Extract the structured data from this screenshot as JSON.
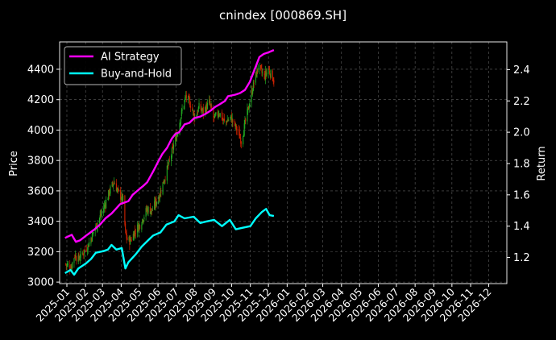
{
  "chart_data": {
    "type": "line",
    "title": "cnindex [000869.SH]",
    "ylabel_left": "Price",
    "ylabel_right": "Return",
    "ylim_left": [
      2990,
      4580
    ],
    "ylim_right": [
      1.033,
      2.577
    ],
    "yticks_left": [
      3000,
      3200,
      3400,
      3600,
      3800,
      4000,
      4200,
      4400
    ],
    "yticks_right": [
      1.2,
      1.4,
      1.6,
      1.8,
      2.0,
      2.2,
      2.4
    ],
    "ytick_labels_right": [
      "1.2",
      "1.4",
      "1.6",
      "1.8",
      "2.0",
      "2.2",
      "2.4"
    ],
    "xlim": [
      "2024-12-20",
      "2026-12-31"
    ],
    "x_ticks": [
      "2025-01",
      "2025-02",
      "2025-03",
      "2025-04",
      "2025-05",
      "2025-06",
      "2025-07",
      "2025-08",
      "2025-09",
      "2025-10",
      "2025-11",
      "2025-12",
      "2026-01",
      "2026-02",
      "2026-03",
      "2026-04",
      "2026-05",
      "2026-06",
      "2026-07",
      "2026-08",
      "2026-09",
      "2026-10",
      "2026-11",
      "2026-12"
    ],
    "x_tick_dates": [
      "2025-01-01",
      "2025-02-01",
      "2025-03-01",
      "2025-04-01",
      "2025-05-01",
      "2025-06-01",
      "2025-07-01",
      "2025-08-01",
      "2025-09-01",
      "2025-10-01",
      "2025-11-01",
      "2025-12-01",
      "2026-01-01",
      "2026-02-01",
      "2026-03-01",
      "2026-04-01",
      "2026-05-01",
      "2026-06-01",
      "2026-07-01",
      "2026-08-01",
      "2026-09-01",
      "2026-10-01",
      "2026-11-01",
      "2026-12-01"
    ],
    "grid": true,
    "legend_position": "top-left",
    "candles": {
      "up_color": "#22aa22",
      "down_color": "#cc2200",
      "close_path": [
        [
          "2024-12-28",
          3120
        ],
        [
          "2025-01-08",
          3100
        ],
        [
          "2025-01-14",
          3180
        ],
        [
          "2025-01-20",
          3150
        ],
        [
          "2025-02-05",
          3240
        ],
        [
          "2025-02-14",
          3330
        ],
        [
          "2025-02-24",
          3420
        ],
        [
          "2025-03-06",
          3520
        ],
        [
          "2025-03-13",
          3600
        ],
        [
          "2025-03-20",
          3660
        ],
        [
          "2025-03-27",
          3590
        ],
        [
          "2025-04-04",
          3540
        ],
        [
          "2025-04-08",
          3320
        ],
        [
          "2025-04-11",
          3280
        ],
        [
          "2025-04-16",
          3270
        ],
        [
          "2025-04-23",
          3330
        ],
        [
          "2025-05-02",
          3380
        ],
        [
          "2025-05-14",
          3480
        ],
        [
          "2025-05-22",
          3470
        ],
        [
          "2025-06-03",
          3570
        ],
        [
          "2025-06-13",
          3700
        ],
        [
          "2025-06-20",
          3790
        ],
        [
          "2025-06-27",
          3900
        ],
        [
          "2025-07-04",
          4000
        ],
        [
          "2025-07-11",
          4130
        ],
        [
          "2025-07-17",
          4220
        ],
        [
          "2025-07-25",
          4170
        ],
        [
          "2025-08-01",
          4080
        ],
        [
          "2025-08-08",
          4150
        ],
        [
          "2025-08-15",
          4120
        ],
        [
          "2025-08-25",
          4180
        ],
        [
          "2025-09-02",
          4070
        ],
        [
          "2025-09-10",
          4120
        ],
        [
          "2025-09-19",
          4050
        ],
        [
          "2025-09-30",
          4080
        ],
        [
          "2025-10-10",
          4000
        ],
        [
          "2025-10-17",
          3930
        ],
        [
          "2025-10-22",
          4020
        ],
        [
          "2025-10-28",
          4130
        ],
        [
          "2025-11-05",
          4280
        ],
        [
          "2025-11-14",
          4420
        ],
        [
          "2025-11-24",
          4350
        ],
        [
          "2025-12-01",
          4400
        ],
        [
          "2025-12-10",
          4330
        ]
      ]
    },
    "series": [
      {
        "name": "AI Strategy",
        "color": "#ff00ff",
        "axis": "right",
        "points": [
          [
            "2024-12-29",
            1.325
          ],
          [
            "2025-01-09",
            1.345
          ],
          [
            "2025-01-16",
            1.3
          ],
          [
            "2025-01-23",
            1.31
          ],
          [
            "2025-02-02",
            1.34
          ],
          [
            "2025-02-09",
            1.36
          ],
          [
            "2025-02-16",
            1.38
          ],
          [
            "2025-02-25",
            1.41
          ],
          [
            "2025-03-06",
            1.45
          ],
          [
            "2025-03-16",
            1.48
          ],
          [
            "2025-03-23",
            1.51
          ],
          [
            "2025-03-30",
            1.54
          ],
          [
            "2025-04-06",
            1.55
          ],
          [
            "2025-04-13",
            1.56
          ],
          [
            "2025-04-20",
            1.6
          ],
          [
            "2025-04-29",
            1.63
          ],
          [
            "2025-05-07",
            1.655
          ],
          [
            "2025-05-14",
            1.68
          ],
          [
            "2025-05-24",
            1.75
          ],
          [
            "2025-06-01",
            1.81
          ],
          [
            "2025-06-08",
            1.86
          ],
          [
            "2025-06-16",
            1.9
          ],
          [
            "2025-06-24",
            1.96
          ],
          [
            "2025-06-30",
            1.99
          ],
          [
            "2025-07-06",
            2.0
          ],
          [
            "2025-07-15",
            2.05
          ],
          [
            "2025-07-23",
            2.06
          ],
          [
            "2025-07-31",
            2.09
          ],
          [
            "2025-08-10",
            2.1
          ],
          [
            "2025-08-20",
            2.12
          ],
          [
            "2025-08-28",
            2.14
          ],
          [
            "2025-09-03",
            2.16
          ],
          [
            "2025-09-12",
            2.18
          ],
          [
            "2025-09-20",
            2.2
          ],
          [
            "2025-09-25",
            2.23
          ],
          [
            "2025-10-07",
            2.24
          ],
          [
            "2025-10-15",
            2.25
          ],
          [
            "2025-10-23",
            2.27
          ],
          [
            "2025-10-31",
            2.32
          ],
          [
            "2025-11-08",
            2.4
          ],
          [
            "2025-11-16",
            2.48
          ],
          [
            "2025-11-23",
            2.5
          ],
          [
            "2025-12-01",
            2.51
          ],
          [
            "2025-12-10",
            2.525
          ]
        ]
      },
      {
        "name": "Buy-and-Hold",
        "color": "#00ffff",
        "axis": "right",
        "points": [
          [
            "2024-12-29",
            1.1
          ],
          [
            "2025-01-07",
            1.12
          ],
          [
            "2025-01-13",
            1.09
          ],
          [
            "2025-01-20",
            1.13
          ],
          [
            "2025-02-01",
            1.16
          ],
          [
            "2025-02-10",
            1.19
          ],
          [
            "2025-02-18",
            1.23
          ],
          [
            "2025-03-02",
            1.24
          ],
          [
            "2025-03-10",
            1.25
          ],
          [
            "2025-03-16",
            1.28
          ],
          [
            "2025-03-24",
            1.25
          ],
          [
            "2025-04-02",
            1.26
          ],
          [
            "2025-04-08",
            1.13
          ],
          [
            "2025-04-13",
            1.17
          ],
          [
            "2025-04-25",
            1.22
          ],
          [
            "2025-05-05",
            1.27
          ],
          [
            "2025-05-13",
            1.3
          ],
          [
            "2025-05-24",
            1.34
          ],
          [
            "2025-06-05",
            1.36
          ],
          [
            "2025-06-15",
            1.41
          ],
          [
            "2025-06-28",
            1.43
          ],
          [
            "2025-07-05",
            1.47
          ],
          [
            "2025-07-15",
            1.45
          ],
          [
            "2025-07-30",
            1.46
          ],
          [
            "2025-08-10",
            1.42
          ],
          [
            "2025-08-20",
            1.43
          ],
          [
            "2025-09-02",
            1.44
          ],
          [
            "2025-09-15",
            1.4
          ],
          [
            "2025-09-28",
            1.44
          ],
          [
            "2025-10-08",
            1.38
          ],
          [
            "2025-10-20",
            1.39
          ],
          [
            "2025-11-01",
            1.4
          ],
          [
            "2025-11-10",
            1.45
          ],
          [
            "2025-11-20",
            1.49
          ],
          [
            "2025-11-27",
            1.51
          ],
          [
            "2025-12-03",
            1.47
          ],
          [
            "2025-12-10",
            1.465
          ]
        ]
      }
    ]
  }
}
